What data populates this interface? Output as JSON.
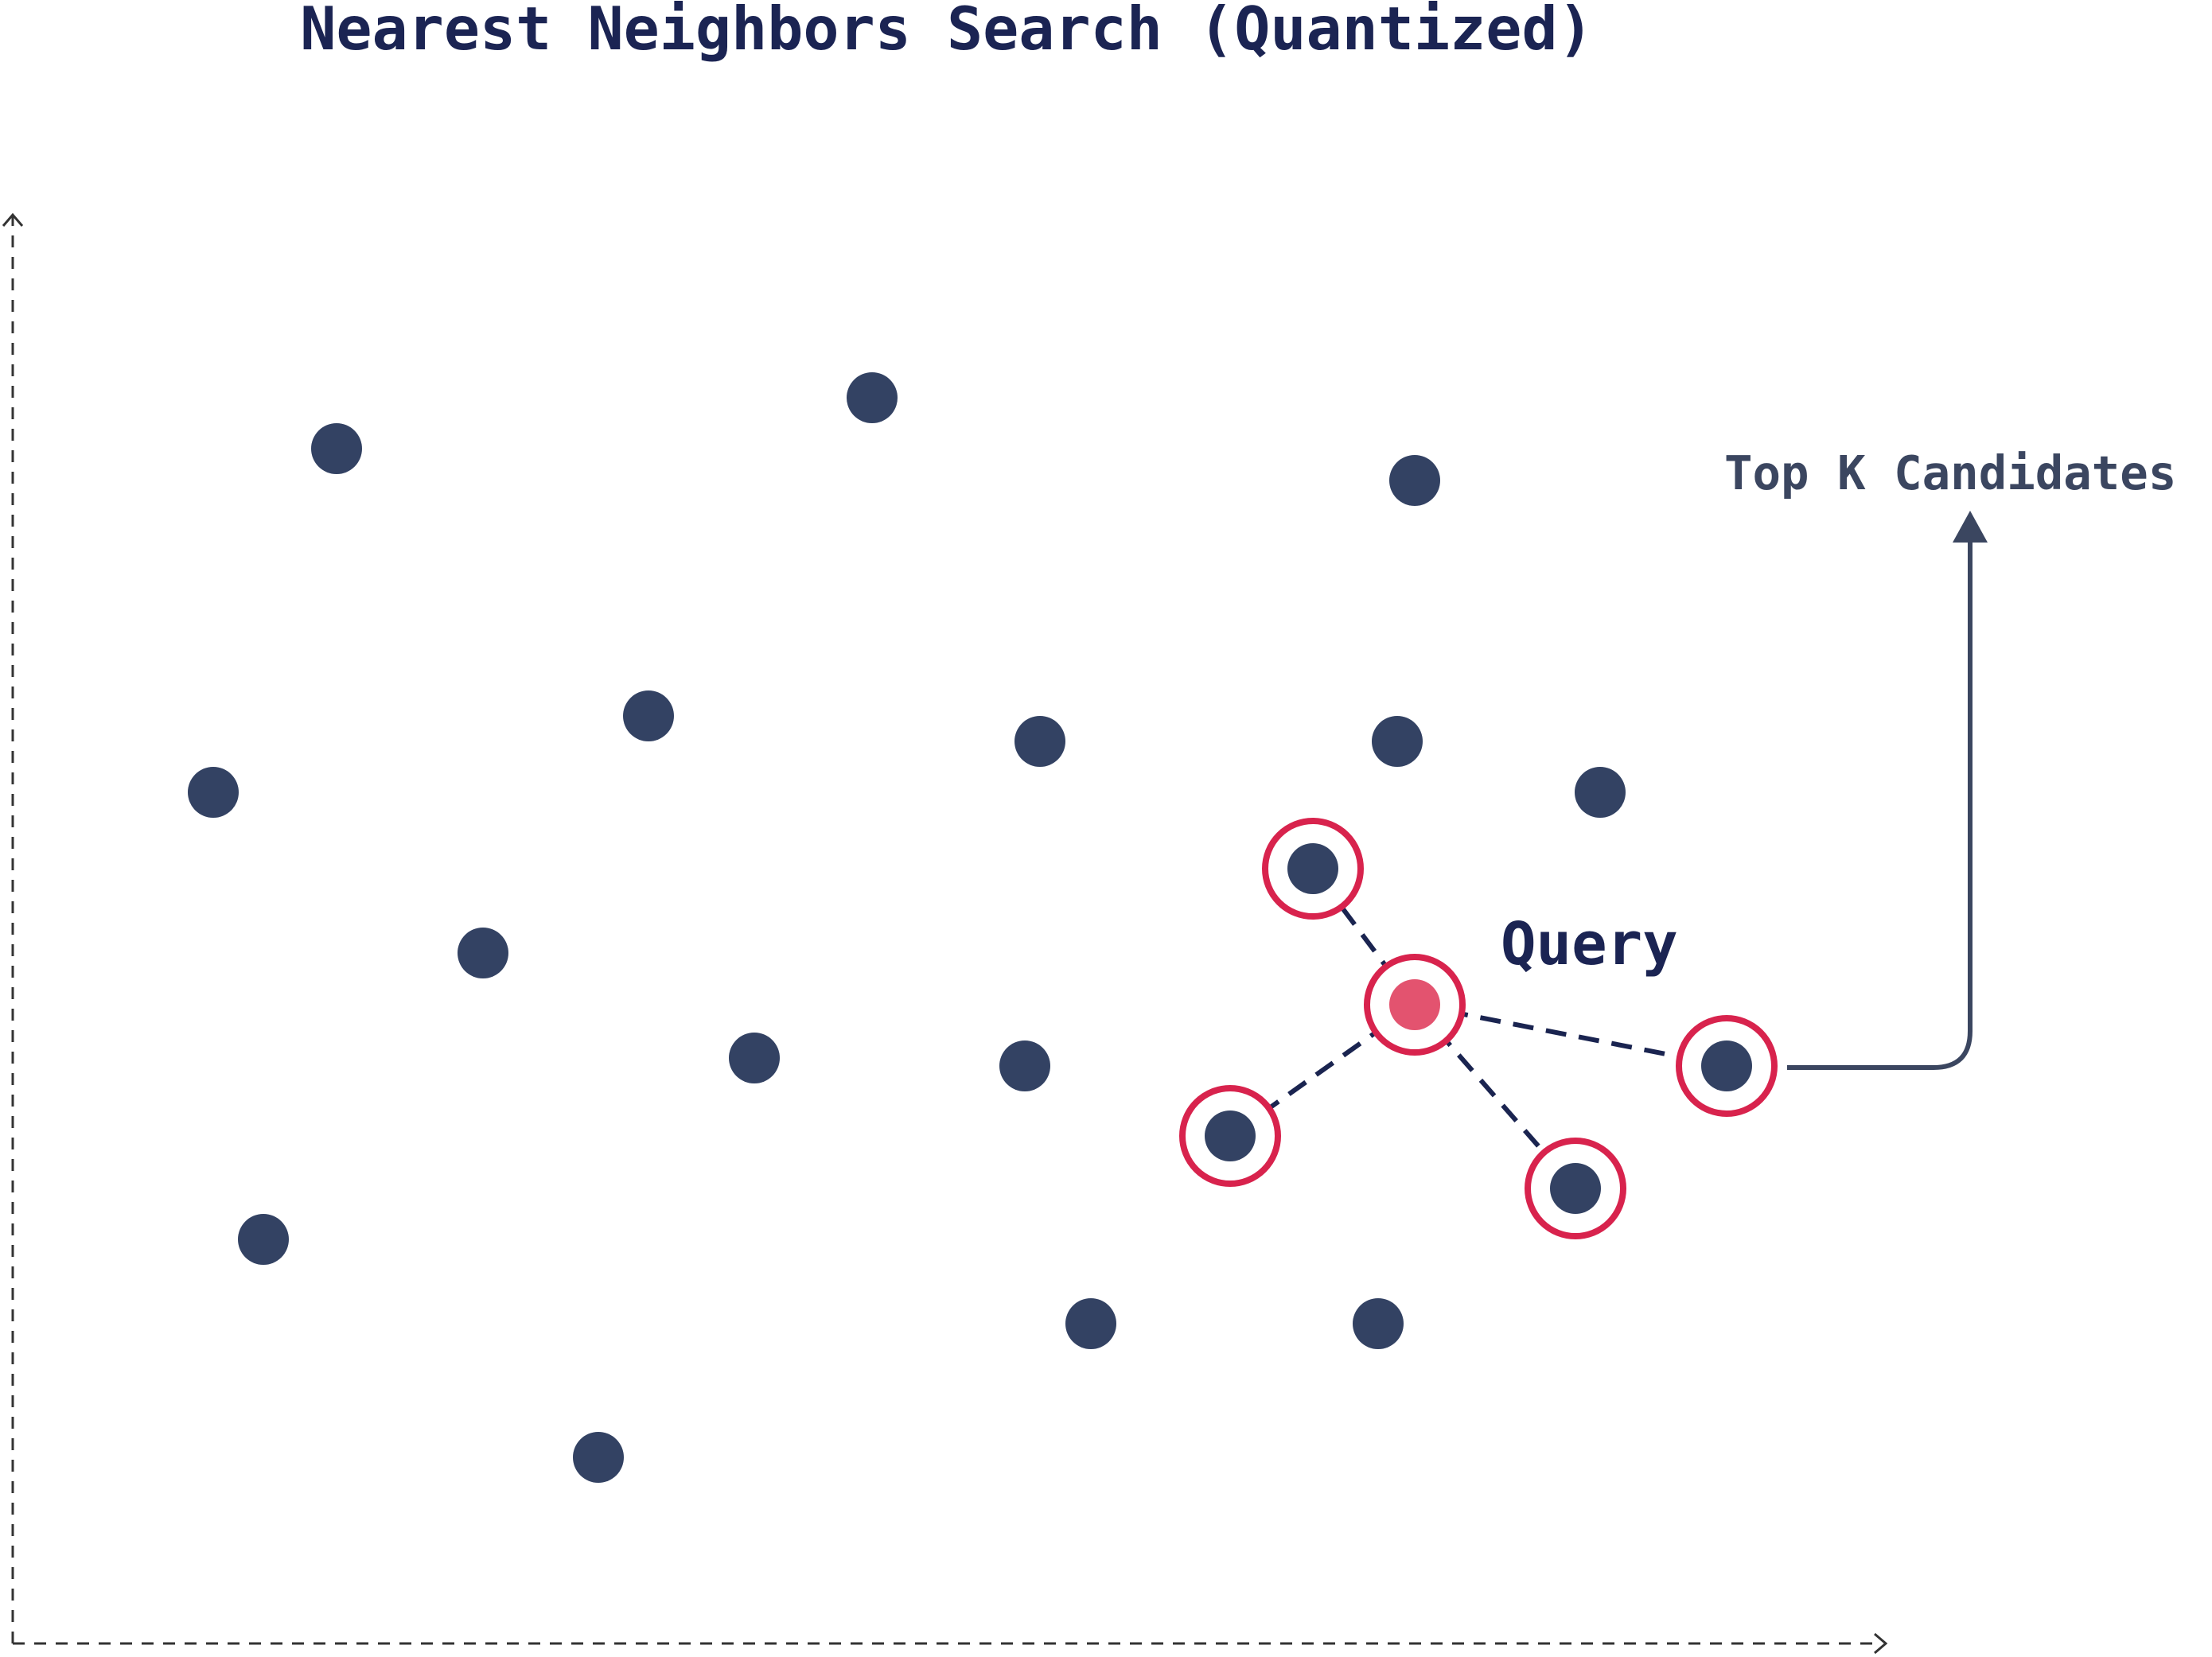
{
  "title": "Nearest Neighbors Search (Quantized)",
  "query_label": "Query",
  "candidates_label": "Top K Candidates",
  "colors": {
    "point": "#334263",
    "query": "#e3536f",
    "highlight_ring": "#d8234d",
    "link_line": "#1a2450",
    "axis": "#333333",
    "title": "#1b2453",
    "candidates_text": "#3b4660"
  },
  "icons": {
    "x_axis_arrow": "chevron-right-icon",
    "y_axis_arrow": "chevron-up-icon",
    "candidates_arrow": "arrow-up-icon"
  }
}
